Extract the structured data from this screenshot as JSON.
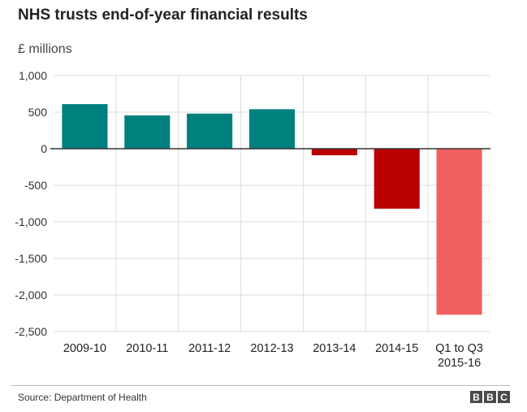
{
  "chart_data": {
    "type": "bar",
    "title": "NHS trusts end-of-year financial results",
    "ylabel": "£ millions",
    "categories": [
      [
        "2009-10"
      ],
      [
        "2010-11"
      ],
      [
        "2011-12"
      ],
      [
        "2012-13"
      ],
      [
        "2013-14"
      ],
      [
        "2014-15"
      ],
      [
        "Q1 to Q3",
        "2015-16"
      ]
    ],
    "values": [
      610,
      455,
      480,
      540,
      -90,
      -820,
      -2270
    ],
    "colors": [
      "#007f7f",
      "#007f7f",
      "#007f7f",
      "#007f7f",
      "#b80000",
      "#b80000",
      "#f06060"
    ],
    "ylim": [
      -2500,
      1000
    ],
    "yticks": [
      1000,
      500,
      0,
      -500,
      -1000,
      -1500,
      -2000,
      -2500
    ],
    "ytick_labels": [
      "1,000",
      "500",
      "0",
      "-500",
      "-1,000",
      "-1,500",
      "-2,000",
      "-2,500"
    ],
    "grid": true
  },
  "footer": {
    "source": "Source: Department of Health",
    "logo_letters": [
      "B",
      "B",
      "C"
    ]
  }
}
